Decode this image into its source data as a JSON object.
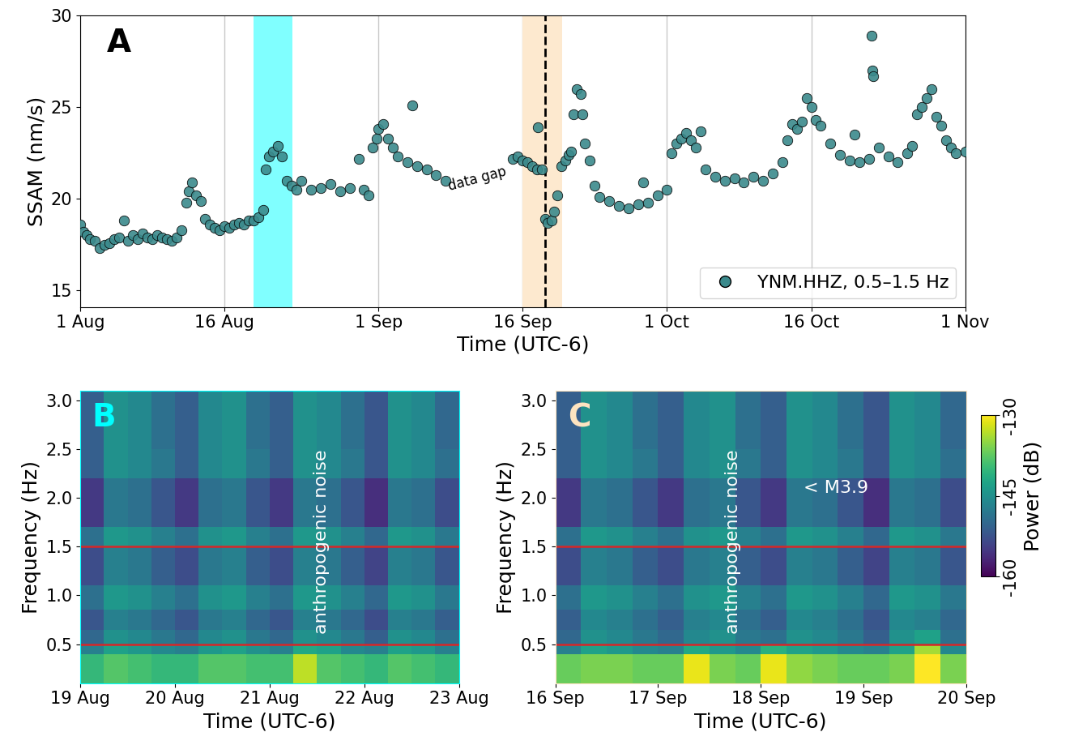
{
  "chart_data": [
    {
      "type": "scatter",
      "panel_label": {
        "text": "A",
        "color": "#000000"
      },
      "xlabel": "Time (UTC-6)",
      "ylabel": "SSAM (nm/s)",
      "x": [
        0,
        0.3,
        0.7,
        1,
        1.5,
        2,
        2.5,
        3,
        3.5,
        4,
        4.5,
        5,
        5.5,
        6,
        6.5,
        7,
        7.5,
        8,
        8.5,
        9,
        9.5,
        10,
        10.5,
        11,
        11.3,
        11.6,
        12,
        12.5,
        13,
        13.5,
        14,
        14.5,
        15,
        15.5,
        16,
        16.5,
        17,
        17.5,
        18,
        18.5,
        19,
        19.3,
        19.6,
        20,
        20.5,
        21,
        21.5,
        22,
        22.5,
        23,
        24,
        25,
        26,
        27,
        28,
        29,
        29.5,
        30,
        30.4,
        30.8,
        31,
        31.5,
        32,
        32.5,
        33,
        34,
        34.5,
        35,
        36,
        37,
        38,
        45,
        45.5,
        46,
        46.5,
        47,
        47.5,
        47.6,
        48,
        48.3,
        48.6,
        49,
        49.3,
        49.6,
        50,
        50.4,
        50.8,
        51,
        51.3,
        51.6,
        52,
        52.2,
        52.5,
        53,
        53.5,
        54,
        55,
        56,
        57,
        58,
        58.5,
        59,
        60,
        61,
        61.5,
        62,
        62.5,
        63,
        63.5,
        64,
        64.5,
        65,
        66,
        67,
        68,
        69,
        70,
        71,
        72,
        73,
        73.5,
        74,
        74.5,
        75,
        75.5,
        76,
        76.5,
        77,
        78,
        79,
        80,
        80.5,
        81,
        82,
        82.3,
        82.35,
        82.4,
        83,
        84,
        85,
        86,
        86.5,
        87,
        87.5,
        88,
        88.5,
        89,
        89.5,
        90,
        90.5,
        91,
        92
      ],
      "series": [
        {
          "name": "YNM.HHZ, 0.5–1.5 Hz",
          "color": "#3b8a8c",
          "marker": "o",
          "values": [
            18.6,
            18.2,
            18.0,
            17.8,
            17.7,
            17.3,
            17.5,
            17.6,
            17.8,
            17.9,
            18.8,
            17.7,
            18.0,
            17.8,
            18.1,
            17.9,
            17.8,
            18.0,
            17.9,
            17.8,
            17.7,
            17.9,
            18.3,
            19.8,
            20.4,
            20.9,
            20.2,
            19.9,
            18.9,
            18.6,
            18.4,
            18.3,
            18.5,
            18.4,
            18.6,
            18.7,
            18.6,
            18.8,
            18.8,
            19.0,
            19.4,
            21.6,
            22.3,
            22.6,
            22.9,
            22.3,
            21.0,
            20.7,
            20.5,
            21.0,
            20.5,
            20.6,
            20.8,
            20.4,
            20.6,
            22.2,
            20.5,
            20.2,
            22.8,
            23.3,
            23.8,
            24.1,
            23.3,
            22.8,
            22.3,
            22.0,
            25.1,
            21.8,
            21.6,
            21.3,
            21.0,
            22.2,
            22.3,
            22.1,
            22.0,
            21.8,
            21.6,
            23.9,
            21.6,
            18.9,
            18.7,
            18.8,
            19.3,
            20.2,
            21.8,
            22.1,
            22.4,
            22.6,
            24.6,
            26.0,
            25.7,
            24.6,
            23.0,
            22.1,
            20.7,
            20.1,
            19.9,
            19.6,
            19.5,
            19.7,
            20.9,
            19.8,
            20.2,
            20.5,
            22.5,
            23.0,
            23.3,
            23.6,
            23.2,
            22.8,
            23.7,
            21.6,
            21.2,
            21.0,
            21.1,
            20.9,
            21.2,
            21.0,
            21.4,
            22.0,
            23.2,
            24.1,
            23.8,
            24.2,
            25.5,
            25.0,
            24.3,
            24.0,
            23.0,
            22.4,
            22.1,
            23.5,
            22.0,
            22.2,
            28.9,
            27.0,
            26.7,
            22.8,
            22.3,
            22.0,
            22.5,
            22.9,
            24.6,
            25.0,
            25.5,
            26.0,
            24.5,
            24.0,
            23.2,
            22.8,
            22.5,
            22.6
          ]
        }
      ],
      "xlim": [
        0,
        92
      ],
      "xticks": [
        {
          "value": 0,
          "label": "1 Aug"
        },
        {
          "value": 15,
          "label": "16 Aug"
        },
        {
          "value": 31,
          "label": "1 Sep"
        },
        {
          "value": 46,
          "label": "16 Sep"
        },
        {
          "value": 61,
          "label": "1 Oct"
        },
        {
          "value": 76,
          "label": "16 Oct"
        },
        {
          "value": 92,
          "label": "1 Nov"
        }
      ],
      "ylim": [
        14.1,
        30
      ],
      "yticks": [
        15,
        20,
        25,
        30
      ],
      "grid": "x",
      "legend": "lower right",
      "shaded_spans": [
        {
          "start": 18,
          "end": 22.05,
          "color": "#80ffff"
        },
        {
          "start": 46,
          "end": 50.1,
          "color": "#fde9cf"
        }
      ],
      "event_line": {
        "x": 48.3,
        "color": "#000000",
        "line_style": "dashed"
      },
      "annotations": [
        {
          "text": "data gap",
          "x": 41.3,
          "y": 21.1
        }
      ]
    },
    {
      "type": "heatmap",
      "panel_label": {
        "text": "B",
        "color": "#00ffff"
      },
      "xlabel": "Time (UTC-6)",
      "ylabel": "Frequency (Hz)",
      "x_edges": [
        0,
        0.25,
        0.5,
        0.75,
        1,
        1.25,
        1.5,
        1.75,
        2,
        2.25,
        2.5,
        2.75,
        3,
        3.25,
        3.5,
        3.75,
        4
      ],
      "y_edges": [
        0.1,
        0.4,
        0.5,
        0.65,
        0.85,
        1.1,
        1.5,
        1.7,
        2.2,
        2.5,
        3.1
      ],
      "cells": [
        [
          -140,
          -138,
          -139,
          -140,
          -140,
          -138,
          -138,
          -139,
          -139,
          -133,
          -138,
          -139,
          -140,
          -138,
          -139,
          -140
        ],
        [
          -147,
          -143,
          -144,
          -146,
          -147,
          -144,
          -143,
          -145,
          -147,
          -142,
          -143,
          -146,
          -147,
          -143,
          -144,
          -147
        ],
        [
          -150,
          -145,
          -146,
          -148,
          -150,
          -146,
          -145,
          -148,
          -150,
          -145,
          -146,
          -148,
          -151,
          -145,
          -146,
          -149
        ],
        [
          -152,
          -147,
          -148,
          -150,
          -152,
          -148,
          -147,
          -150,
          -152,
          -147,
          -148,
          -150,
          -153,
          -147,
          -148,
          -151
        ],
        [
          -149,
          -144,
          -145,
          -147,
          -149,
          -145,
          -144,
          -147,
          -149,
          -144,
          -145,
          -147,
          -150,
          -144,
          -145,
          -148
        ],
        [
          -153,
          -147,
          -148,
          -151,
          -153,
          -148,
          -147,
          -151,
          -153,
          -147,
          -148,
          -151,
          -154,
          -147,
          -148,
          -152
        ],
        [
          -149,
          -144,
          -145,
          -147,
          -149,
          -145,
          -144,
          -147,
          -149,
          -144,
          -145,
          -147,
          -150,
          -144,
          -145,
          -148
        ],
        [
          -155,
          -148,
          -149,
          -152,
          -155,
          -149,
          -148,
          -152,
          -155,
          -148,
          -149,
          -152,
          -156,
          -148,
          -149,
          -153
        ],
        [
          -151,
          -145,
          -146,
          -148,
          -151,
          -146,
          -145,
          -148,
          -151,
          -145,
          -146,
          -148,
          -152,
          -145,
          -146,
          -149
        ],
        [
          -151,
          -145,
          -146,
          -149,
          -151,
          -146,
          -145,
          -149,
          -151,
          -145,
          -146,
          -149,
          -152,
          -145,
          -146,
          -150
        ]
      ],
      "xlim": [
        0,
        4
      ],
      "xticks": [
        {
          "value": 0,
          "label": "19 Aug"
        },
        {
          "value": 1,
          "label": "20 Aug"
        },
        {
          "value": 2,
          "label": "21 Aug"
        },
        {
          "value": 3,
          "label": "22 Aug"
        },
        {
          "value": 4,
          "label": "23 Aug"
        }
      ],
      "ylim": [
        0.1,
        3.1
      ],
      "yticks": [
        0.5,
        1.0,
        1.5,
        2.0,
        2.5,
        3.0
      ],
      "band_lines": {
        "values": [
          0.5,
          1.5
        ],
        "color": "#d62728"
      },
      "color_range": [
        -160,
        -130
      ],
      "annotations": [
        {
          "text": "anthropogenic noise",
          "x": 2.55,
          "y": 1.55,
          "vertical": true
        }
      ]
    },
    {
      "type": "heatmap",
      "panel_label": {
        "text": "C",
        "color": "#fde3c0"
      },
      "xlabel": "Time (UTC-6)",
      "ylabel": "Frequency (Hz)",
      "x_edges": [
        0,
        0.25,
        0.5,
        0.75,
        1,
        1.25,
        1.5,
        1.75,
        2,
        2.25,
        2.5,
        2.75,
        3,
        3.25,
        3.5,
        3.75,
        4
      ],
      "y_edges": [
        0.1,
        0.4,
        0.5,
        0.65,
        0.85,
        1.1,
        1.5,
        1.7,
        2.2,
        2.5,
        3.1
      ],
      "cells": [
        [
          -137,
          -136,
          -136,
          -137,
          -137,
          -131,
          -136,
          -137,
          -131,
          -135,
          -136,
          -137,
          -137,
          -136,
          -130,
          -136
        ],
        [
          -147,
          -143,
          -144,
          -146,
          -147,
          -142,
          -144,
          -146,
          -141,
          -143,
          -144,
          -146,
          -147,
          -143,
          -134,
          -146
        ],
        [
          -150,
          -145,
          -146,
          -148,
          -150,
          -146,
          -145,
          -148,
          -149,
          -145,
          -146,
          -148,
          -151,
          -145,
          -143,
          -149
        ],
        [
          -151,
          -146,
          -147,
          -149,
          -151,
          -147,
          -146,
          -149,
          -151,
          -146,
          -147,
          -149,
          -152,
          -146,
          -147,
          -150
        ],
        [
          -149,
          -144,
          -145,
          -147,
          -149,
          -145,
          -144,
          -147,
          -149,
          -144,
          -145,
          -147,
          -150,
          -144,
          -145,
          -148
        ],
        [
          -153,
          -147,
          -148,
          -151,
          -153,
          -148,
          -147,
          -151,
          -153,
          -147,
          -148,
          -151,
          -154,
          -147,
          -148,
          -152
        ],
        [
          -149,
          -144,
          -145,
          -147,
          -149,
          -145,
          -144,
          -147,
          -149,
          -144,
          -145,
          -147,
          -150,
          -144,
          -145,
          -148
        ],
        [
          -155,
          -148,
          -149,
          -152,
          -155,
          -149,
          -148,
          -152,
          -155,
          -148,
          -149,
          -152,
          -156,
          -148,
          -149,
          -153
        ],
        [
          -151,
          -145,
          -146,
          -148,
          -151,
          -146,
          -145,
          -148,
          -151,
          -145,
          -146,
          -148,
          -152,
          -145,
          -146,
          -149
        ],
        [
          -151,
          -145,
          -146,
          -149,
          -151,
          -146,
          -145,
          -149,
          -151,
          -145,
          -146,
          -149,
          -152,
          -145,
          -146,
          -150
        ]
      ],
      "xlim": [
        0,
        4
      ],
      "xticks": [
        {
          "value": 0,
          "label": "16 Sep"
        },
        {
          "value": 1,
          "label": "17 Sep"
        },
        {
          "value": 2,
          "label": "18 Sep"
        },
        {
          "value": 3,
          "label": "19 Sep"
        },
        {
          "value": 4,
          "label": "20 Sep"
        }
      ],
      "ylim": [
        0.1,
        3.1
      ],
      "yticks": [
        0.5,
        1.0,
        1.5,
        2.0,
        2.5,
        3.0
      ],
      "band_lines": {
        "values": [
          0.5,
          1.5
        ],
        "color": "#d62728"
      },
      "color_range": [
        -160,
        -130
      ],
      "colorbar": {
        "label": "Power (dB)",
        "range": [
          -160,
          -130
        ],
        "ticks": [
          {
            "value": -160,
            "label": "-160"
          },
          {
            "value": -145,
            "label": "-145"
          },
          {
            "value": -130,
            "label": "-130"
          }
        ]
      },
      "annotations": [
        {
          "text": "anthropogenic noise",
          "x": 1.73,
          "y": 1.55,
          "vertical": true
        },
        {
          "text": "< M3.9",
          "x": 2.42,
          "y": 2.1,
          "vertical": false
        }
      ]
    }
  ]
}
